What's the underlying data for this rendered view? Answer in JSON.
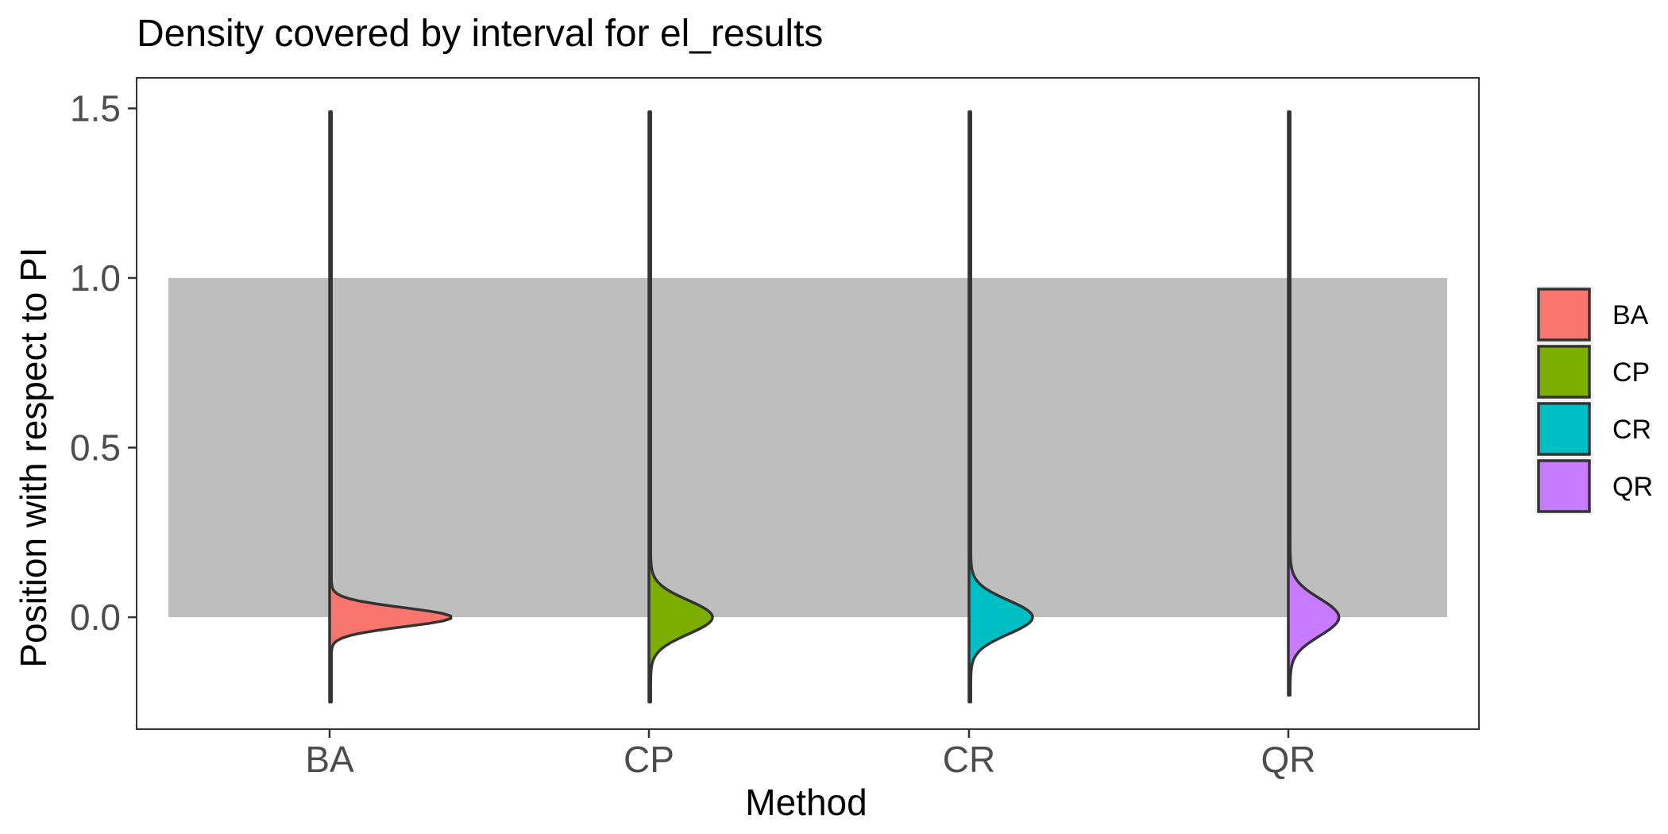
{
  "chart_data": {
    "type": "violin",
    "title": "Density covered by interval for el_results",
    "xlabel": "Method",
    "ylabel": "Position with respect to PI",
    "categories": [
      "BA",
      "CP",
      "CR",
      "QR"
    ],
    "y_ticks": [
      0.0,
      0.5,
      1.0,
      1.5
    ],
    "y_tick_labels": [
      "0.0",
      "0.5",
      "1.0",
      "1.5"
    ],
    "ylim": [
      -0.33,
      1.59
    ],
    "shaded_band": [
      0.0,
      1.0
    ],
    "grid": false,
    "legend_position": "right",
    "legend_entries": [
      "BA",
      "CP",
      "CR",
      "QR"
    ],
    "series": [
      {
        "name": "BA",
        "color": "#F8766D",
        "range": [
          -0.25,
          1.49
        ],
        "peak_y": 0.0,
        "peak_width": 0.37,
        "spread": 0.028
      },
      {
        "name": "CP",
        "color": "#7CAE00",
        "range": [
          -0.25,
          1.49
        ],
        "peak_y": 0.0,
        "peak_width": 0.19,
        "spread": 0.05
      },
      {
        "name": "CR",
        "color": "#00BFC4",
        "range": [
          -0.25,
          1.49
        ],
        "peak_y": 0.0,
        "peak_width": 0.19,
        "spread": 0.05
      },
      {
        "name": "QR",
        "color": "#C77CFF",
        "range": [
          -0.23,
          1.49
        ],
        "peak_y": 0.0,
        "peak_width": 0.15,
        "spread": 0.055
      }
    ]
  }
}
